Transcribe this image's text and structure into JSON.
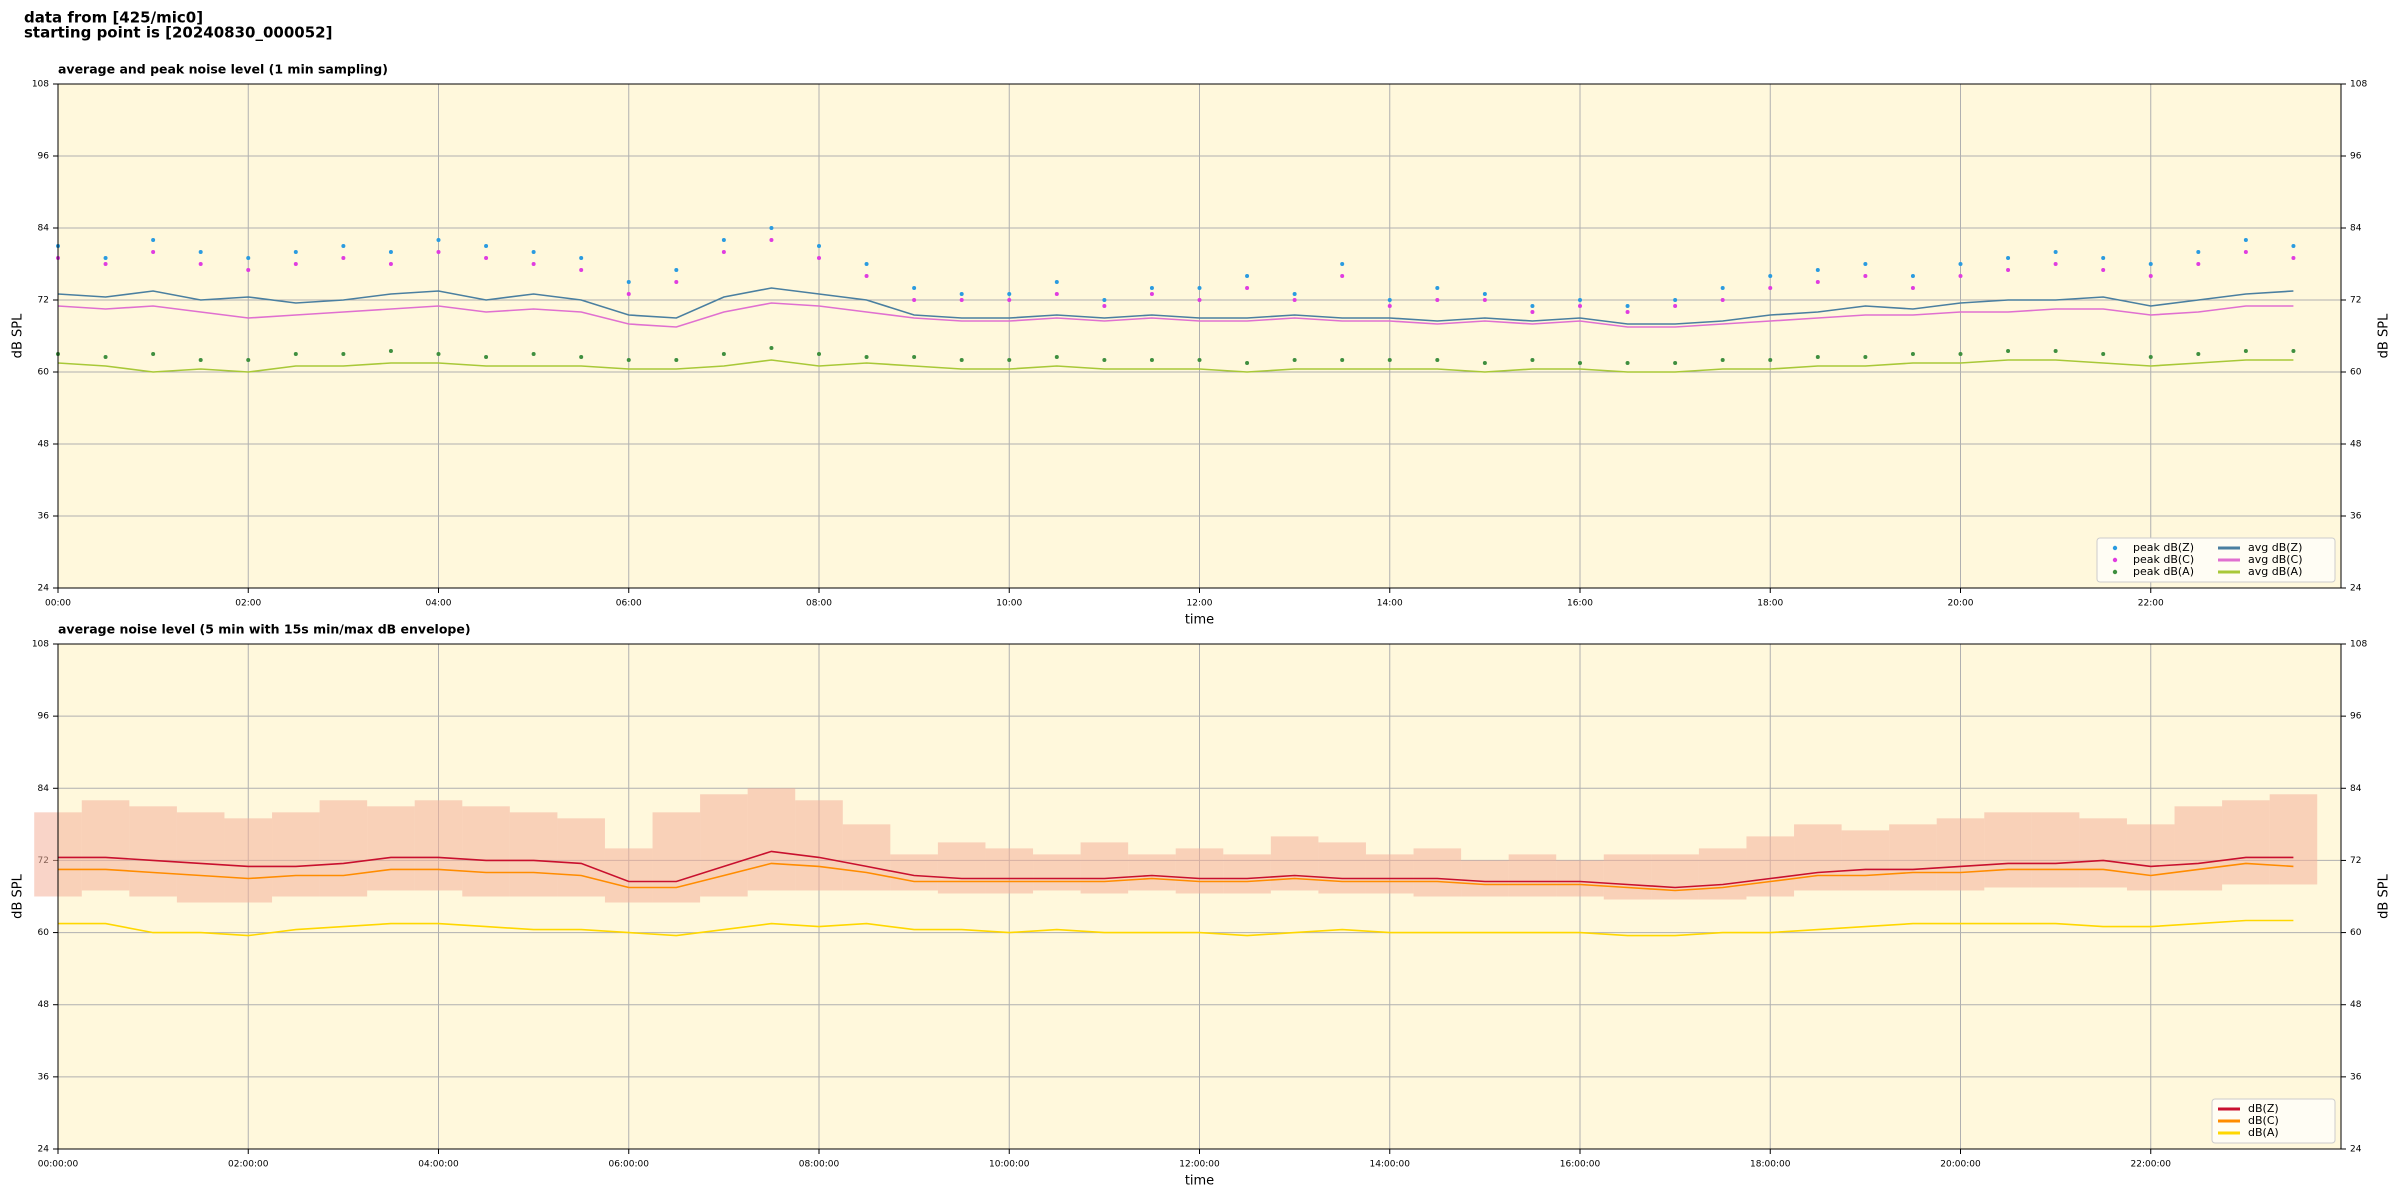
{
  "header": [
    "data from [425/mic0]",
    "starting point is [20240830_000052]"
  ],
  "chart_data": [
    {
      "type": "line",
      "title": "average and peak noise level (1 min sampling)",
      "xlabel": "time",
      "ylabel": "dB SPL",
      "xlim": [
        0,
        24
      ],
      "ylim": [
        24,
        108
      ],
      "xticks": [
        {
          "value": 0,
          "label": "00:00"
        },
        {
          "value": 2,
          "label": "02:00"
        },
        {
          "value": 4,
          "label": "04:00"
        },
        {
          "value": 6,
          "label": "06:00"
        },
        {
          "value": 8,
          "label": "08:00"
        },
        {
          "value": 10,
          "label": "10:00"
        },
        {
          "value": 12,
          "label": "12:00"
        },
        {
          "value": 14,
          "label": "14:00"
        },
        {
          "value": 16,
          "label": "16:00"
        },
        {
          "value": 18,
          "label": "18:00"
        },
        {
          "value": 20,
          "label": "20:00"
        },
        {
          "value": 22,
          "label": "22:00"
        }
      ],
      "yticks": [
        24,
        36,
        48,
        60,
        72,
        84,
        96,
        108
      ],
      "grid": true,
      "background": "#fff8dc",
      "legend": "lower right",
      "legend_columns": 2,
      "x": [
        0,
        0.5,
        1,
        1.5,
        2,
        2.5,
        3,
        3.5,
        4,
        4.5,
        5,
        5.5,
        6,
        6.5,
        7,
        7.5,
        8,
        8.5,
        9,
        9.5,
        10,
        10.5,
        11,
        11.5,
        12,
        12.5,
        13,
        13.5,
        14,
        14.5,
        15,
        15.5,
        16,
        16.5,
        17,
        17.5,
        18,
        18.5,
        19,
        19.5,
        20,
        20.5,
        21,
        21.5,
        22,
        22.5,
        23,
        23.5
      ],
      "series": [
        {
          "name": "peak dB(Z)",
          "color": "#2a9be0",
          "marker": true,
          "values": [
            81,
            79,
            82,
            80,
            79,
            80,
            81,
            80,
            82,
            81,
            80,
            79,
            75,
            77,
            82,
            84,
            81,
            78,
            74,
            73,
            73,
            75,
            72,
            74,
            74,
            76,
            73,
            78,
            72,
            74,
            73,
            71,
            72,
            71,
            72,
            74,
            76,
            77,
            78,
            76,
            78,
            79,
            80,
            79,
            78,
            80,
            82,
            81
          ]
        },
        {
          "name": "peak dB(C)",
          "color": "#e03ce0",
          "marker": true,
          "values": [
            79,
            78,
            80,
            78,
            77,
            78,
            79,
            78,
            80,
            79,
            78,
            77,
            73,
            75,
            80,
            82,
            79,
            76,
            72,
            72,
            72,
            73,
            71,
            73,
            72,
            74,
            72,
            76,
            71,
            72,
            72,
            70,
            71,
            70,
            71,
            72,
            74,
            75,
            76,
            74,
            76,
            77,
            78,
            77,
            76,
            78,
            80,
            79
          ]
        },
        {
          "name": "peak dB(A)",
          "color": "#3f8f3f",
          "marker": true,
          "values": [
            63,
            62.5,
            63,
            62,
            62,
            63,
            63,
            63.5,
            63,
            62.5,
            63,
            62.5,
            62,
            62,
            63,
            64,
            63,
            62.5,
            62.5,
            62,
            62,
            62.5,
            62,
            62,
            62,
            61.5,
            62,
            62,
            62,
            62,
            61.5,
            62,
            61.5,
            61.5,
            61.5,
            62,
            62,
            62.5,
            62.5,
            63,
            63,
            63.5,
            63.5,
            63,
            62.5,
            63,
            63.5,
            63.5
          ]
        },
        {
          "name": "avg dB(Z)",
          "color": "#4a7fa0",
          "marker": false,
          "values": [
            73,
            72.5,
            73.5,
            72,
            72.5,
            71.5,
            72,
            73,
            73.5,
            72,
            73,
            72,
            69.5,
            69,
            72.5,
            74,
            73,
            72,
            69.5,
            69,
            69,
            69.5,
            69,
            69.5,
            69,
            69,
            69.5,
            69,
            69,
            68.5,
            69,
            68.5,
            69,
            68,
            68,
            68.5,
            69.5,
            70,
            71,
            70.5,
            71.5,
            72,
            72,
            72.5,
            71,
            72,
            73,
            73.5
          ]
        },
        {
          "name": "avg dB(C)",
          "color": "#e070d0",
          "marker": false,
          "values": [
            71,
            70.5,
            71,
            70,
            69,
            69.5,
            70,
            70.5,
            71,
            70,
            70.5,
            70,
            68,
            67.5,
            70,
            71.5,
            71,
            70,
            69,
            68.5,
            68.5,
            69,
            68.5,
            69,
            68.5,
            68.5,
            69,
            68.5,
            68.5,
            68,
            68.5,
            68,
            68.5,
            67.5,
            67.5,
            68,
            68.5,
            69,
            69.5,
            69.5,
            70,
            70,
            70.5,
            70.5,
            69.5,
            70,
            71,
            71
          ]
        },
        {
          "name": "avg dB(A)",
          "color": "#a8c838",
          "marker": false,
          "values": [
            61.5,
            61,
            60,
            60.5,
            60,
            61,
            61,
            61.5,
            61.5,
            61,
            61,
            61,
            60.5,
            60.5,
            61,
            62,
            61,
            61.5,
            61,
            60.5,
            60.5,
            61,
            60.5,
            60.5,
            60.5,
            60,
            60.5,
            60.5,
            60.5,
            60.5,
            60,
            60.5,
            60.5,
            60,
            60,
            60.5,
            60.5,
            61,
            61,
            61.5,
            61.5,
            62,
            62,
            61.5,
            61,
            61.5,
            62,
            62
          ]
        }
      ]
    },
    {
      "type": "line",
      "title": "average noise level (5 min with 15s min/max dB envelope)",
      "xlabel": "time",
      "ylabel": "dB SPL",
      "xlim": [
        0,
        24
      ],
      "ylim": [
        24,
        108
      ],
      "xticks": [
        {
          "value": 0,
          "label": "00:00:00"
        },
        {
          "value": 2,
          "label": "02:00:00"
        },
        {
          "value": 4,
          "label": "04:00:00"
        },
        {
          "value": 6,
          "label": "06:00:00"
        },
        {
          "value": 8,
          "label": "08:00:00"
        },
        {
          "value": 10,
          "label": "10:00:00"
        },
        {
          "value": 12,
          "label": "12:00:00"
        },
        {
          "value": 14,
          "label": "14:00:00"
        },
        {
          "value": 16,
          "label": "16:00:00"
        },
        {
          "value": 18,
          "label": "18:00:00"
        },
        {
          "value": 20,
          "label": "20:00:00"
        },
        {
          "value": 22,
          "label": "22:00:00"
        }
      ],
      "yticks": [
        24,
        36,
        48,
        60,
        72,
        84,
        96,
        108
      ],
      "grid": true,
      "background": "#fff8dc",
      "legend": "lower right",
      "legend_columns": 1,
      "x": [
        0,
        0.5,
        1,
        1.5,
        2,
        2.5,
        3,
        3.5,
        4,
        4.5,
        5,
        5.5,
        6,
        6.5,
        7,
        7.5,
        8,
        8.5,
        9,
        9.5,
        10,
        10.5,
        11,
        11.5,
        12,
        12.5,
        13,
        13.5,
        14,
        14.5,
        15,
        15.5,
        16,
        16.5,
        17,
        17.5,
        18,
        18.5,
        19,
        19.5,
        20,
        20.5,
        21,
        21.5,
        22,
        22.5,
        23,
        23.5
      ],
      "band": {
        "color": "#f4b09a",
        "low": [
          66,
          67,
          66,
          65,
          65,
          66,
          66,
          67,
          67,
          66,
          66,
          66,
          65,
          65,
          66,
          67,
          67,
          67,
          67,
          66.5,
          66.5,
          67,
          66.5,
          67,
          66.5,
          66.5,
          67,
          66.5,
          66.5,
          66,
          66,
          66,
          66,
          65.5,
          65.5,
          65.5,
          66,
          67,
          67,
          67,
          67,
          67.5,
          67.5,
          67.5,
          67,
          67,
          68,
          68
        ],
        "high": [
          80,
          82,
          81,
          80,
          79,
          80,
          82,
          81,
          82,
          81,
          80,
          79,
          74,
          80,
          83,
          84,
          82,
          78,
          73,
          75,
          74,
          73,
          75,
          73,
          74,
          73,
          76,
          75,
          73,
          74,
          72,
          73,
          72,
          73,
          73,
          74,
          76,
          78,
          77,
          78,
          79,
          80,
          80,
          79,
          78,
          81,
          82,
          83
        ]
      },
      "series": [
        {
          "name": "dB(Z)",
          "color": "#c8102e",
          "marker": false,
          "values": [
            72.5,
            72.5,
            72,
            71.5,
            71,
            71,
            71.5,
            72.5,
            72.5,
            72,
            72,
            71.5,
            68.5,
            68.5,
            71,
            73.5,
            72.5,
            71,
            69.5,
            69,
            69,
            69,
            69,
            69.5,
            69,
            69,
            69.5,
            69,
            69,
            69,
            68.5,
            68.5,
            68.5,
            68,
            67.5,
            68,
            69,
            70,
            70.5,
            70.5,
            71,
            71.5,
            71.5,
            72,
            71,
            71.5,
            72.5,
            72.5
          ]
        },
        {
          "name": "dB(C)",
          "color": "#ff8c00",
          "marker": false,
          "values": [
            70.5,
            70.5,
            70,
            69.5,
            69,
            69.5,
            69.5,
            70.5,
            70.5,
            70,
            70,
            69.5,
            67.5,
            67.5,
            69.5,
            71.5,
            71,
            70,
            68.5,
            68.5,
            68.5,
            68.5,
            68.5,
            69,
            68.5,
            68.5,
            69,
            68.5,
            68.5,
            68.5,
            68,
            68,
            68,
            67.5,
            67,
            67.5,
            68.5,
            69.5,
            69.5,
            70,
            70,
            70.5,
            70.5,
            70.5,
            69.5,
            70.5,
            71.5,
            71
          ]
        },
        {
          "name": "dB(A)",
          "color": "#ffd700",
          "marker": false,
          "values": [
            61.5,
            61.5,
            60,
            60,
            59.5,
            60.5,
            61,
            61.5,
            61.5,
            61,
            60.5,
            60.5,
            60,
            59.5,
            60.5,
            61.5,
            61,
            61.5,
            60.5,
            60.5,
            60,
            60.5,
            60,
            60,
            60,
            59.5,
            60,
            60.5,
            60,
            60,
            60,
            60,
            60,
            59.5,
            59.5,
            60,
            60,
            60.5,
            61,
            61.5,
            61.5,
            61.5,
            61.5,
            61,
            61,
            61.5,
            62,
            62
          ]
        }
      ]
    }
  ]
}
